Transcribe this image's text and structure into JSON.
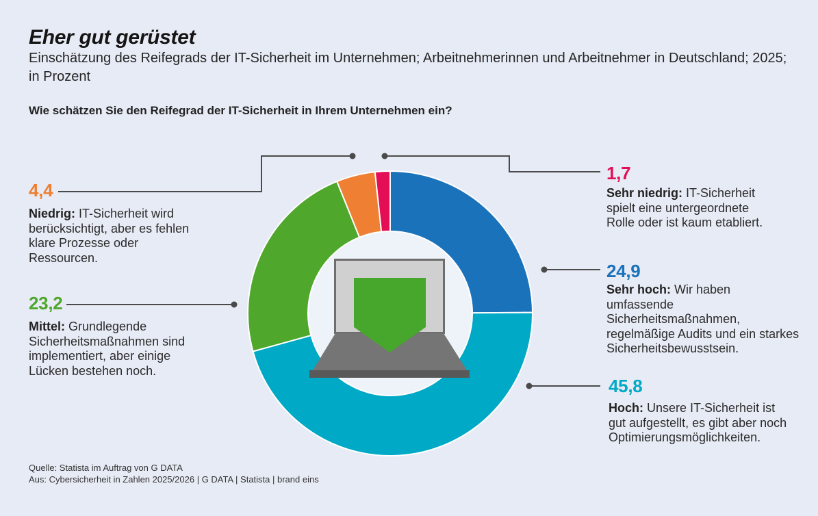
{
  "header": {
    "title": "Eher gut gerüstet",
    "subtitle": "Einschätzung des Reifegrads der IT-Sicherheit im Unternehmen; Arbeitnehmerinnen und Arbeitnehmer in Deutschland; 2025; in Prozent",
    "question": "Wie schätzen Sie den Reifegrad der IT-Sicherheit in Ihrem Unternehmen ein?"
  },
  "footer": {
    "source": "Quelle: Statista im Auftrag von G DATA",
    "attribution": "Aus: Cybersicherheit in Zahlen 2025/2026 | G DATA | Statista | brand eins"
  },
  "colors": {
    "background": "#e7ebf5",
    "donut_hole": "#eef2f9",
    "callout_line": "#4a4a4a",
    "laptop_screen_fill": "#d0d0d0",
    "laptop_screen_border": "#6e6e6e",
    "laptop_base": "#757575",
    "laptop_base_edge": "#595959",
    "shield_green": "#47a62c"
  },
  "chart_data": {
    "type": "pie",
    "donut": true,
    "unit": "percent",
    "total": 100,
    "start_angle_deg": 0,
    "direction": "clockwise",
    "title": "Eher gut gerüstet",
    "question": "Wie schätzen Sie den Reifegrad der IT-Sicherheit in Ihrem Unternehmen ein?",
    "segments": [
      {
        "id": "sehr-hoch",
        "label": "Sehr hoch",
        "value": 24.9,
        "value_label": "24,9",
        "color": "#1a72bb",
        "desc_bold": "Sehr hoch:",
        "desc_rest": " Wir haben umfassende Sicherheitsmaßnahmen, regelmäßige Audits und ein starkes Sicherheitsbewusstsein."
      },
      {
        "id": "hoch",
        "label": "Hoch",
        "value": 45.8,
        "value_label": "45,8",
        "color": "#00a9c6",
        "desc_bold": "Hoch:",
        "desc_rest": " Unsere IT-Sicherheit ist gut aufgestellt, es gibt aber noch Optimierungsmöglichkeiten."
      },
      {
        "id": "mittel",
        "label": "Mittel",
        "value": 23.2,
        "value_label": "23,2",
        "color": "#4fa72b",
        "desc_bold": "Mittel:",
        "desc_rest": " Grundlegende Sicherheitsmaßnahmen sind implementiert, aber einige Lücken bestehen noch."
      },
      {
        "id": "niedrig",
        "label": "Niedrig",
        "value": 4.4,
        "value_label": "4,4",
        "color": "#ee7f33",
        "desc_bold": "Niedrig:",
        "desc_rest": " IT-Sicherheit wird berücksichtigt, aber es fehlen klare Prozesse oder Ressourcen."
      },
      {
        "id": "sehr-niedrig",
        "label": "Sehr niedrig",
        "value": 1.7,
        "value_label": "1,7",
        "color": "#e30e56",
        "desc_bold": "Sehr niedrig:",
        "desc_rest": " IT-Sicherheit spielt eine untergeordnete Rolle oder ist kaum etabliert."
      }
    ]
  }
}
